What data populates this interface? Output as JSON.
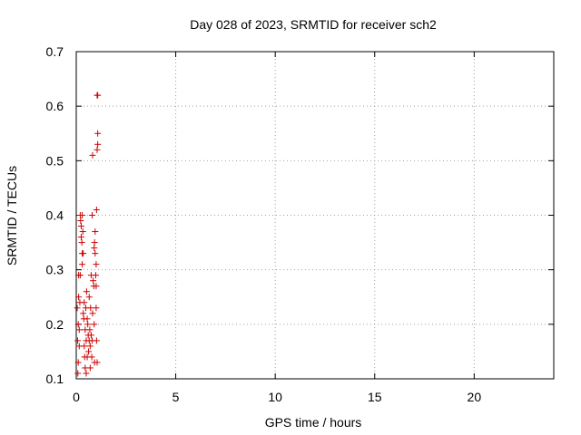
{
  "chart_data": {
    "type": "scatter",
    "title": "Day 028 of 2023, SRMTID for receiver sch2",
    "xlabel": "GPS time / hours",
    "ylabel": "SRMTID / TECUs",
    "xlim": [
      0,
      24
    ],
    "ylim": [
      0.1,
      0.7
    ],
    "xticks": [
      0,
      5,
      10,
      15,
      20
    ],
    "yticks": [
      0.1,
      0.2,
      0.3,
      0.4,
      0.5,
      0.6,
      0.7
    ],
    "xtick_labels": [
      "0",
      "5",
      "10",
      "15",
      "20"
    ],
    "ytick_labels": [
      "0.1",
      "0.2",
      "0.3",
      "0.4",
      "0.5",
      "0.6",
      "0.7"
    ],
    "grid": true,
    "marker": "+",
    "color": "#cc0000",
    "series": [
      {
        "points": [
          [
            0.05,
            0.23
          ],
          [
            0.07,
            0.17
          ],
          [
            0.08,
            0.11
          ],
          [
            0.1,
            0.13
          ],
          [
            0.1,
            0.2
          ],
          [
            0.12,
            0.29
          ],
          [
            0.12,
            0.25
          ],
          [
            0.15,
            0.16
          ],
          [
            0.15,
            0.19
          ],
          [
            0.18,
            0.24
          ],
          [
            0.2,
            0.29
          ],
          [
            0.2,
            0.4
          ],
          [
            0.22,
            0.39
          ],
          [
            0.25,
            0.38
          ],
          [
            0.25,
            0.36
          ],
          [
            0.28,
            0.35
          ],
          [
            0.3,
            0.4
          ],
          [
            0.3,
            0.33
          ],
          [
            0.3,
            0.31
          ],
          [
            0.33,
            0.37
          ],
          [
            0.35,
            0.33
          ],
          [
            0.35,
            0.22
          ],
          [
            0.38,
            0.21
          ],
          [
            0.4,
            0.24
          ],
          [
            0.4,
            0.16
          ],
          [
            0.42,
            0.14
          ],
          [
            0.45,
            0.12
          ],
          [
            0.45,
            0.19
          ],
          [
            0.48,
            0.23
          ],
          [
            0.5,
            0.11
          ],
          [
            0.5,
            0.17
          ],
          [
            0.52,
            0.26
          ],
          [
            0.55,
            0.14
          ],
          [
            0.55,
            0.21
          ],
          [
            0.58,
            0.2
          ],
          [
            0.6,
            0.18
          ],
          [
            0.62,
            0.15
          ],
          [
            0.65,
            0.17
          ],
          [
            0.65,
            0.25
          ],
          [
            0.68,
            0.19
          ],
          [
            0.7,
            0.12
          ],
          [
            0.7,
            0.16
          ],
          [
            0.72,
            0.23
          ],
          [
            0.75,
            0.18
          ],
          [
            0.75,
            0.29
          ],
          [
            0.78,
            0.14
          ],
          [
            0.8,
            0.4
          ],
          [
            0.8,
            0.17
          ],
          [
            0.82,
            0.22
          ],
          [
            0.82,
            0.51
          ],
          [
            0.85,
            0.28
          ],
          [
            0.88,
            0.27
          ],
          [
            0.9,
            0.34
          ],
          [
            0.9,
            0.2
          ],
          [
            0.92,
            0.35
          ],
          [
            0.92,
            0.13
          ],
          [
            0.95,
            0.33
          ],
          [
            0.95,
            0.37
          ],
          [
            0.98,
            0.29
          ],
          [
            1.0,
            0.27
          ],
          [
            1.0,
            0.31
          ],
          [
            1.0,
            0.23
          ],
          [
            1.02,
            0.41
          ],
          [
            1.02,
            0.17
          ],
          [
            1.05,
            0.52
          ],
          [
            1.05,
            0.13
          ],
          [
            1.05,
            0.62
          ],
          [
            1.08,
            0.62
          ],
          [
            1.08,
            0.53
          ],
          [
            1.08,
            0.55
          ]
        ]
      }
    ]
  }
}
